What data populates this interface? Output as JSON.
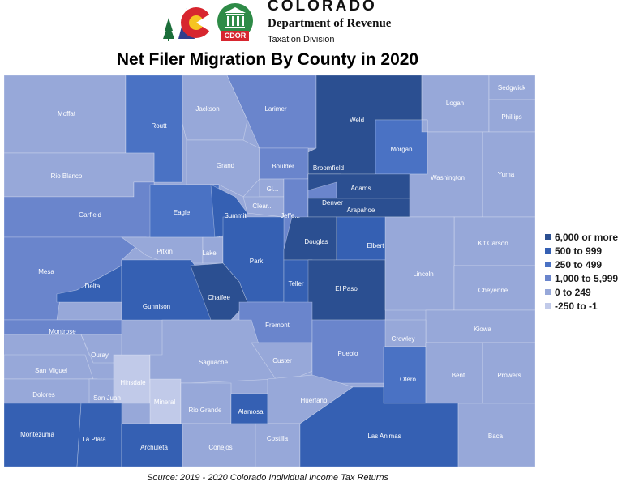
{
  "header": {
    "agency_name": "COLORADO",
    "department": "Department of Revenue",
    "division": "Taxation Division",
    "cdor_badge": "CDOR"
  },
  "map_title": "Net Filer Migration By County in 2020",
  "source": "Source: 2019 - 2020 Colorado Individual Income Tax Returns",
  "colors": {
    "6000_plus": "#2b4f91",
    "500_999": "#3560b3",
    "250_499": "#4a72c4",
    "1000_5999": "#6a85cc",
    "0_249": "#97a8d9",
    "neg_250_neg_1": "#c1cae9"
  },
  "legend": [
    {
      "label": "6,000 or more",
      "color": "#2b4f91"
    },
    {
      "label": "500 to 999",
      "color": "#3560b3"
    },
    {
      "label": "250 to 499",
      "color": "#4a72c4"
    },
    {
      "label": "1,000 to 5,999",
      "color": "#6a85cc"
    },
    {
      "label": "0 to 249",
      "color": "#97a8d9"
    },
    {
      "label": "-250 to -1",
      "color": "#c1cae9"
    }
  ],
  "counties": {
    "moffat": {
      "name": "Moffat",
      "category": "0 to 249"
    },
    "routt": {
      "name": "Routt",
      "category": "250 to 499"
    },
    "jackson": {
      "name": "Jackson",
      "category": "0 to 249"
    },
    "larimer": {
      "name": "Larimer",
      "category": "1,000 to 5,999"
    },
    "weld": {
      "name": "Weld",
      "category": "6,000 or more"
    },
    "logan": {
      "name": "Logan",
      "category": "0 to 249"
    },
    "sedgwick": {
      "name": "Sedgwick",
      "category": "0 to 249"
    },
    "phillips": {
      "name": "Phillips",
      "category": "0 to 249"
    },
    "rio_blanco": {
      "name": "Rio Blanco",
      "category": "0 to 249"
    },
    "grand": {
      "name": "Grand",
      "category": "0 to 249"
    },
    "boulder": {
      "name": "Boulder",
      "category": "1,000 to 5,999"
    },
    "broomfield": {
      "name": "Broomfield",
      "category": "6,000 or more"
    },
    "morgan": {
      "name": "Morgan",
      "category": "250 to 499"
    },
    "washington": {
      "name": "Washington",
      "category": "0 to 249"
    },
    "yuma": {
      "name": "Yuma",
      "category": "0 to 249"
    },
    "garfield": {
      "name": "Garfield",
      "category": "1,000 to 5,999"
    },
    "eagle": {
      "name": "Eagle",
      "category": "250 to 499"
    },
    "summit": {
      "name": "Summit",
      "category": "500 to 999"
    },
    "gilpin": {
      "name": "Gi...",
      "category": "0 to 249"
    },
    "clear_creek": {
      "name": "Clear...",
      "category": "0 to 249"
    },
    "jefferson": {
      "name": "Jeffe...",
      "category": "1,000 to 5,999"
    },
    "adams": {
      "name": "Adams",
      "category": "6,000 or more"
    },
    "denver": {
      "name": "Denver",
      "category": "1,000 to 5,999"
    },
    "arapahoe": {
      "name": "Arapahoe",
      "category": "6,000 or more"
    },
    "mesa": {
      "name": "Mesa",
      "category": "1,000 to 5,999"
    },
    "pitkin": {
      "name": "Pitkin",
      "category": "0 to 249"
    },
    "lake": {
      "name": "Lake",
      "category": "0 to 249"
    },
    "park": {
      "name": "Park",
      "category": "500 to 999"
    },
    "douglas": {
      "name": "Douglas",
      "category": "6,000 or more"
    },
    "elbert": {
      "name": "Elbert",
      "category": "500 to 999"
    },
    "kit_carson": {
      "name": "Kit Carson",
      "category": "0 to 249"
    },
    "delta": {
      "name": "Delta",
      "category": "500 to 999"
    },
    "gunnison": {
      "name": "Gunnison",
      "category": "500 to 999"
    },
    "chaffee": {
      "name": "Chaffee",
      "category": "6,000 or more"
    },
    "teller": {
      "name": "Teller",
      "category": "500 to 999"
    },
    "el_paso": {
      "name": "El Paso",
      "category": "6,000 or more"
    },
    "lincoln": {
      "name": "Lincoln",
      "category": "0 to 249"
    },
    "cheyenne": {
      "name": "Cheyenne",
      "category": "0 to 249"
    },
    "montrose": {
      "name": "Montrose",
      "category": "1,000 to 5,999"
    },
    "ouray": {
      "name": "Ouray",
      "category": "0 to 249"
    },
    "fremont": {
      "name": "Fremont",
      "category": "1,000 to 5,999"
    },
    "kiowa": {
      "name": "Kiowa",
      "category": "0 to 249"
    },
    "crowley": {
      "name": "Crowley",
      "category": "0 to 249"
    },
    "san_miguel": {
      "name": "San Miguel",
      "category": "0 to 249"
    },
    "hinsdale": {
      "name": "Hinsdale",
      "category": "-250 to -1"
    },
    "saguache": {
      "name": "Saguache",
      "category": "0 to 249"
    },
    "custer": {
      "name": "Custer",
      "category": "0 to 249"
    },
    "pueblo": {
      "name": "Pueblo",
      "category": "1,000 to 5,999"
    },
    "otero": {
      "name": "Otero",
      "category": "250 to 499"
    },
    "bent": {
      "name": "Bent",
      "category": "0 to 249"
    },
    "prowers": {
      "name": "Prowers",
      "category": "0 to 249"
    },
    "dolores": {
      "name": "Dolores",
      "category": "0 to 249"
    },
    "san_juan": {
      "name": "San Juan",
      "category": "0 to 249"
    },
    "mineral": {
      "name": "Mineral",
      "category": "-250 to -1"
    },
    "rio_grande": {
      "name": "Rio Grande",
      "category": "0 to 249"
    },
    "alamosa": {
      "name": "Alamosa",
      "category": "500 to 999"
    },
    "huerfano": {
      "name": "Huerfano",
      "category": "0 to 249"
    },
    "montezuma": {
      "name": "Montezuma",
      "category": "500 to 999"
    },
    "la_plata": {
      "name": "La Plata",
      "category": "500 to 999"
    },
    "archuleta": {
      "name": "Archuleta",
      "category": "500 to 999"
    },
    "conejos": {
      "name": "Conejos",
      "category": "0 to 249"
    },
    "costilla": {
      "name": "Costilla",
      "category": "0 to 249"
    },
    "las_animas": {
      "name": "Las Animas",
      "category": "500 to 999"
    },
    "baca": {
      "name": "Baca",
      "category": "0 to 249"
    }
  }
}
